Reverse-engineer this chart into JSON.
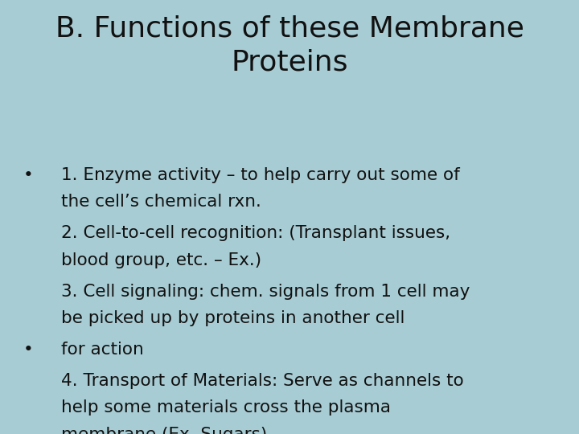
{
  "background_color": "#a8ccd4",
  "title_line1": "B. Functions of these Membrane",
  "title_line2": "Proteins",
  "title_fontsize": 26,
  "title_fontweight": "normal",
  "title_color": "#111111",
  "body_color": "#111111",
  "body_fontsize": 15.5,
  "bullet1_line1": "1. Enzyme activity – to help carry out some of",
  "bullet1_line2": "the cell’s chemical rxn.",
  "item2_line1": "2. Cell-to-cell recognition: (Transplant issues,",
  "item2_line2": "blood group, etc. – Ex.)",
  "item3_line1": "3. Cell signaling: chem. signals from 1 cell may",
  "item3_line2": "be picked up by proteins in another cell",
  "bullet2": "for action",
  "item4_line1": "4. Transport of Materials: Serve as channels to",
  "item4_line2": "help some materials cross the plasma",
  "item4_line3": "membrane (Ex. Sugars)"
}
